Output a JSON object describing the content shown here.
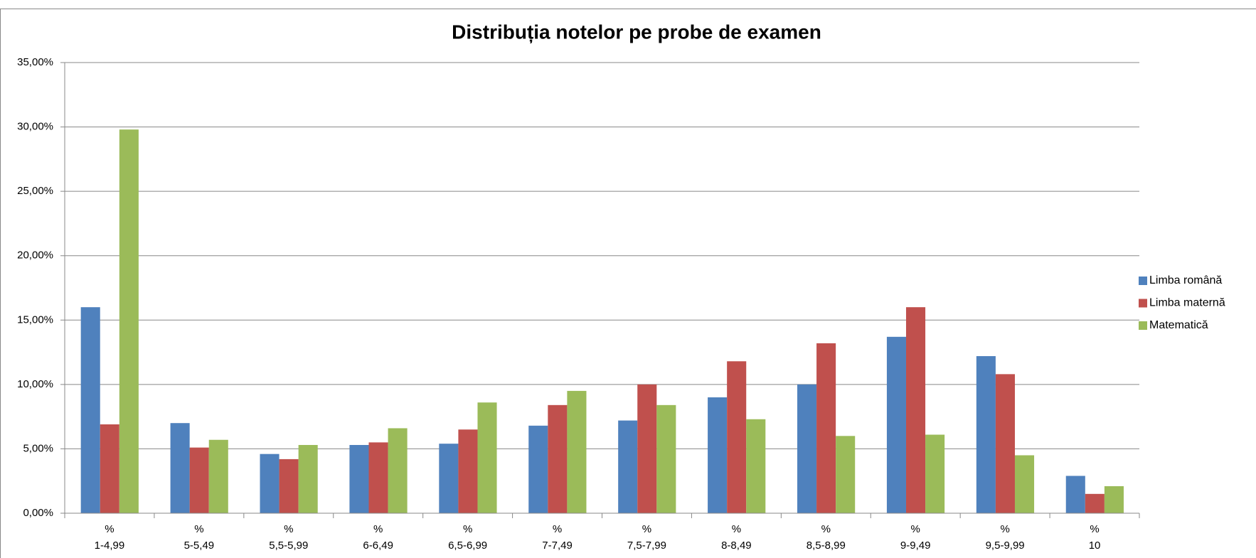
{
  "chart_data": {
    "type": "bar",
    "title": "Distribuția notelor pe probe de examen",
    "categories": [
      [
        "%",
        "1-4,99"
      ],
      [
        "%",
        "5-5,49"
      ],
      [
        "%",
        "5,5-5,99"
      ],
      [
        "%",
        "6-6,49"
      ],
      [
        "%",
        "6,5-6,99"
      ],
      [
        "%",
        "7-7,49"
      ],
      [
        "%",
        "7,5-7,99"
      ],
      [
        "%",
        "8-8,49"
      ],
      [
        "%",
        "8,5-8,99"
      ],
      [
        "%",
        "9-9,49"
      ],
      [
        "%",
        "9,5-9,99"
      ],
      [
        "%",
        "10"
      ]
    ],
    "series": [
      {
        "name": "Limba română",
        "color": "#4f81bd",
        "values": [
          16.0,
          7.0,
          4.6,
          5.3,
          5.4,
          6.8,
          7.2,
          9.0,
          10.0,
          13.7,
          12.2,
          2.9
        ]
      },
      {
        "name": "Limba maternă",
        "color": "#c0504d",
        "values": [
          6.9,
          5.1,
          4.2,
          5.5,
          6.5,
          8.4,
          10.0,
          11.8,
          13.2,
          16.0,
          10.8,
          1.5
        ]
      },
      {
        "name": "Matematică",
        "color": "#9bbb59",
        "values": [
          29.8,
          5.7,
          5.3,
          6.6,
          8.6,
          9.5,
          8.4,
          7.3,
          6.0,
          6.1,
          4.5,
          2.1
        ]
      }
    ],
    "ylim": [
      0,
      35
    ],
    "yticks": [
      {
        "value": 0,
        "label": "0,00%"
      },
      {
        "value": 5,
        "label": "5,00%"
      },
      {
        "value": 10,
        "label": "10,00%"
      },
      {
        "value": 15,
        "label": "15,00%"
      },
      {
        "value": 20,
        "label": "20,00%"
      },
      {
        "value": 25,
        "label": "25,00%"
      },
      {
        "value": 30,
        "label": "30,00%"
      },
      {
        "value": 35,
        "label": "35,00%"
      }
    ],
    "grid": true,
    "legend": "right"
  }
}
